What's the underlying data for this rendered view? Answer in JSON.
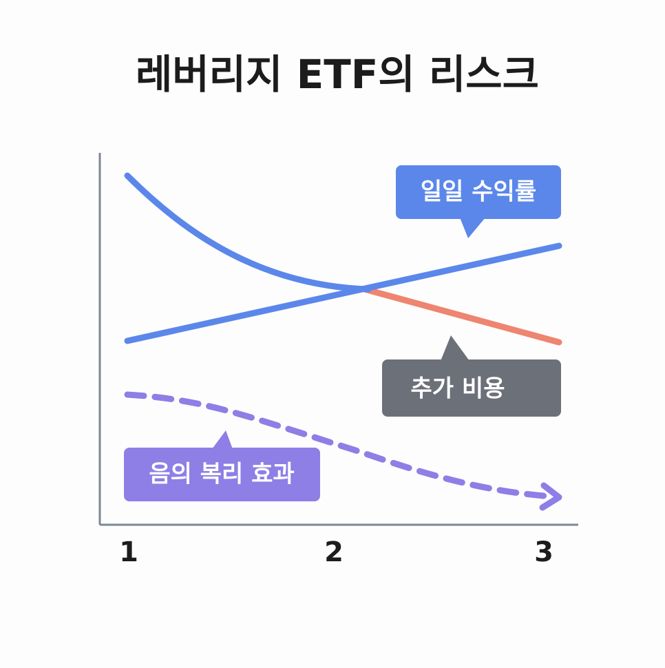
{
  "title": "레버리지 ETF의 리스크",
  "x_axis": {
    "labels": [
      "1",
      "2",
      "3"
    ]
  },
  "callouts": [
    {
      "label": "일일 수익률"
    },
    {
      "label": "추가 비용"
    },
    {
      "label": "음의 복리 효과"
    }
  ]
}
